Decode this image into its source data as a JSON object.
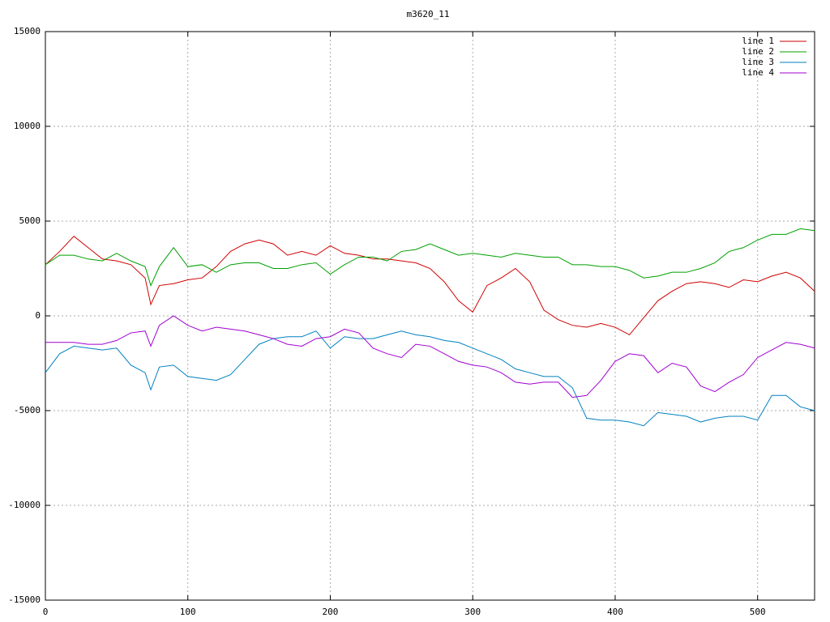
{
  "chart_data": {
    "type": "line",
    "title": "m3620_11",
    "x": [
      0,
      10,
      20,
      30,
      40,
      50,
      60,
      70,
      74,
      80,
      90,
      100,
      110,
      120,
      130,
      140,
      150,
      160,
      170,
      180,
      190,
      200,
      210,
      220,
      230,
      240,
      250,
      260,
      270,
      280,
      290,
      300,
      310,
      320,
      330,
      340,
      350,
      360,
      370,
      380,
      390,
      400,
      410,
      420,
      430,
      440,
      450,
      460,
      470,
      480,
      490,
      500,
      510,
      520,
      530,
      540
    ],
    "series": [
      {
        "name": "line 1",
        "color": "#d00000",
        "values": [
          2700,
          3400,
          4200,
          3600,
          3000,
          2900,
          2700,
          2000,
          600,
          1600,
          1700,
          1900,
          2000,
          2600,
          3400,
          3800,
          4000,
          3800,
          3200,
          3400,
          3200,
          3700,
          3300,
          3200,
          3000,
          3000,
          2900,
          2800,
          2500,
          1800,
          800,
          200,
          1600,
          2000,
          2500,
          1800,
          300,
          -200,
          -500,
          -600,
          -400,
          -600,
          -1000,
          -100,
          800,
          1300,
          1700,
          1800,
          1700,
          1500,
          1900,
          1800,
          2100,
          2300,
          2000,
          1300
        ]
      },
      {
        "name": "line 2",
        "color": "#00a000",
        "values": [
          2700,
          3200,
          3200,
          3000,
          2900,
          3300,
          2900,
          2600,
          1600,
          2600,
          3600,
          2600,
          2700,
          2300,
          2700,
          2800,
          2800,
          2500,
          2500,
          2700,
          2800,
          2200,
          2700,
          3100,
          3100,
          2900,
          3400,
          3500,
          3800,
          3500,
          3200,
          3300,
          3200,
          3100,
          3300,
          3200,
          3100,
          3100,
          2700,
          2700,
          2600,
          2600,
          2400,
          2000,
          2100,
          2300,
          2300,
          2500,
          2800,
          3400,
          3600,
          4000,
          4300,
          4300,
          4600,
          4500
        ]
      },
      {
        "name": "line 3",
        "color": "#0080c0",
        "values": [
          -3000,
          -2000,
          -1600,
          -1700,
          -1800,
          -1700,
          -2600,
          -3000,
          -3900,
          -2700,
          -2600,
          -3200,
          -3300,
          -3400,
          -3100,
          -2300,
          -1500,
          -1200,
          -1100,
          -1100,
          -800,
          -1700,
          -1100,
          -1200,
          -1200,
          -1000,
          -800,
          -1000,
          -1100,
          -1300,
          -1400,
          -1700,
          -2000,
          -2300,
          -2800,
          -3000,
          -3200,
          -3200,
          -3800,
          -5400,
          -5500,
          -5500,
          -5600,
          -5800,
          -5100,
          -5200,
          -5300,
          -5600,
          -5400,
          -5300,
          -5300,
          -5500,
          -4200,
          -4200,
          -4800,
          -5000
        ]
      },
      {
        "name": "line 4",
        "color": "#a000d0",
        "values": [
          -1400,
          -1400,
          -1400,
          -1500,
          -1500,
          -1300,
          -900,
          -800,
          -1600,
          -500,
          0,
          -500,
          -800,
          -600,
          -700,
          -800,
          -1000,
          -1200,
          -1500,
          -1600,
          -1200,
          -1100,
          -700,
          -900,
          -1700,
          -2000,
          -2200,
          -1500,
          -1600,
          -2000,
          -2400,
          -2600,
          -2700,
          -3000,
          -3500,
          -3600,
          -3500,
          -3500,
          -4300,
          -4200,
          -3400,
          -2400,
          -2000,
          -2100,
          -3000,
          -2500,
          -2700,
          -3700,
          -4000,
          -3500,
          -3100,
          -2200,
          -1800,
          -1400,
          -1500,
          -1700
        ]
      }
    ],
    "xlim": [
      0,
      540
    ],
    "xticks": [
      0,
      100,
      200,
      300,
      400,
      500
    ],
    "ylim": [
      -15000,
      15000
    ],
    "yticks": [
      -15000,
      -10000,
      -5000,
      0,
      5000,
      10000,
      15000
    ],
    "grid": true,
    "legend": "top-right"
  }
}
